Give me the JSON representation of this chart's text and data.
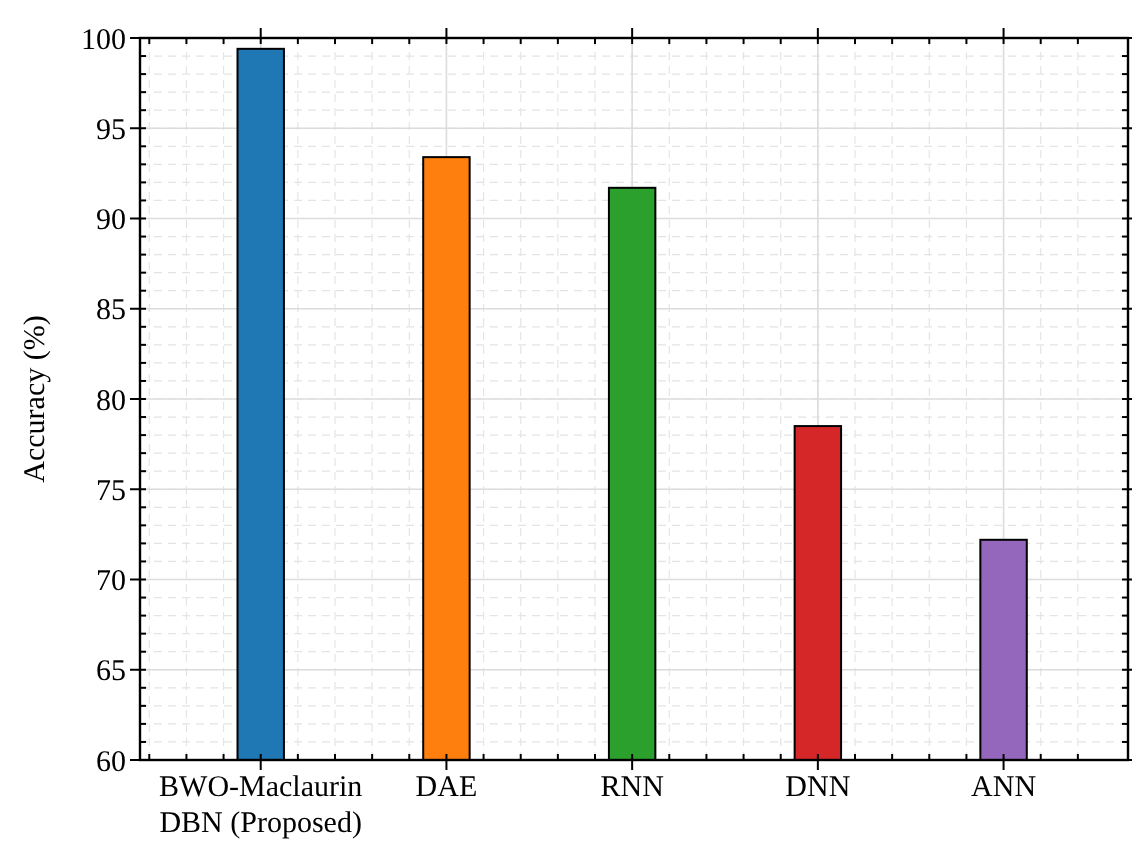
{
  "chart_data": {
    "type": "bar",
    "ylabel": "Accuracy (%)",
    "categories": [
      "BWO-Maclaurin\nDBN (Proposed)",
      "DAE",
      "RNN",
      "DNN",
      "ANN"
    ],
    "values": [
      99.4,
      93.4,
      91.7,
      78.5,
      72.2
    ],
    "colors": [
      "#1f77b4",
      "#ff7f0e",
      "#2ca02c",
      "#d62728",
      "#9467bd"
    ],
    "ylim": [
      60,
      100
    ],
    "yticks": [
      60,
      65,
      70,
      75,
      80,
      85,
      90,
      95,
      100
    ],
    "grid": true
  }
}
